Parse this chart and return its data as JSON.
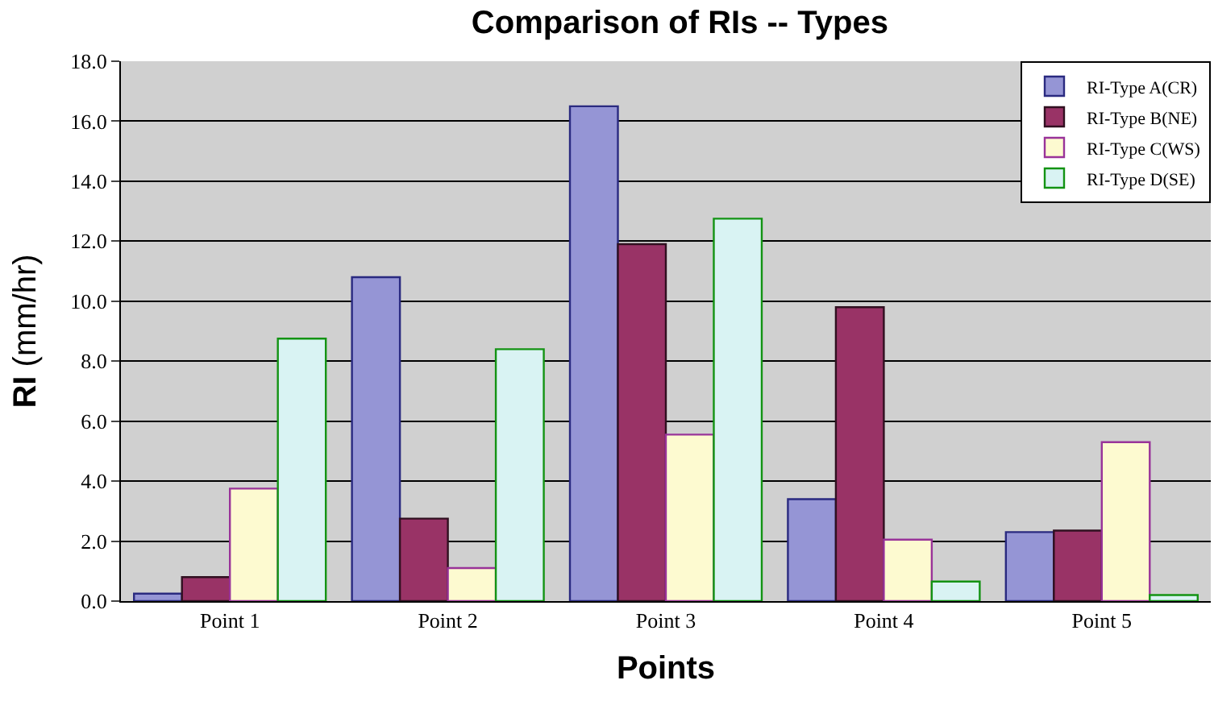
{
  "chart_data": {
    "type": "bar",
    "title": "Comparison of RIs -- Types",
    "xlabel": "Points",
    "ylabel": "RI (mm/hr)",
    "categories": [
      "Point 1",
      "Point 2",
      "Point 3",
      "Point 4",
      "Point 5"
    ],
    "series": [
      {
        "name": "RI-Type A(CR)",
        "color": "#9595d5",
        "values": [
          0.25,
          10.8,
          16.5,
          3.4,
          2.3
        ]
      },
      {
        "name": "RI-Type B(NE)",
        "color": "#993366",
        "values": [
          0.8,
          2.75,
          11.9,
          9.8,
          2.35
        ]
      },
      {
        "name": "RI-Type C(WS)",
        "color": "#fdfad0",
        "values": [
          3.75,
          1.1,
          5.55,
          2.05,
          5.3
        ]
      },
      {
        "name": "RI-Type D(SE)",
        "color": "#d9f3f3",
        "values": [
          8.75,
          8.4,
          12.75,
          0.65,
          0.2
        ]
      }
    ],
    "ylim": [
      0,
      18
    ],
    "yticks": [
      {
        "value": 0,
        "label": "0.0"
      },
      {
        "value": 2,
        "label": "2.0"
      },
      {
        "value": 4,
        "label": "4.0"
      },
      {
        "value": 6,
        "label": "6.0"
      },
      {
        "value": 8,
        "label": "8.0"
      },
      {
        "value": 10,
        "label": "10.0"
      },
      {
        "value": 12,
        "label": "12.0"
      },
      {
        "value": 14,
        "label": "14.0"
      },
      {
        "value": 16,
        "label": "16.0"
      },
      {
        "value": 18,
        "label": "18.0"
      }
    ],
    "grid": "y",
    "legend": "top right"
  }
}
